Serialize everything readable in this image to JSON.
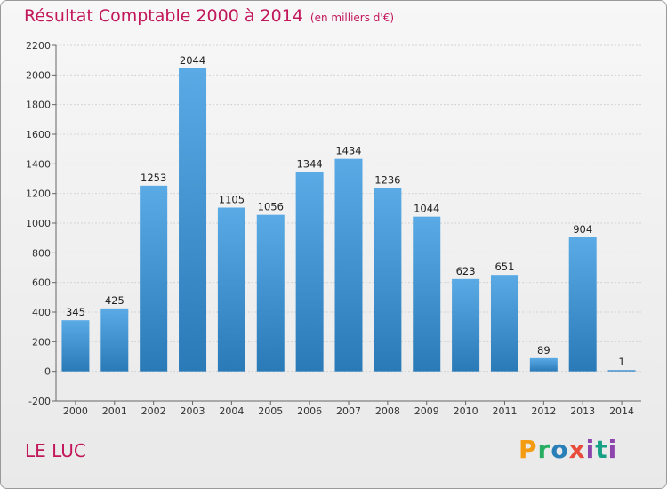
{
  "header": {
    "title": "Résultat Comptable 2000 à 2014",
    "unit": "(en milliers d'€)"
  },
  "commune": "LE LUC",
  "logo": {
    "text": "Proxiti"
  },
  "colors": {
    "accent": "#c2185b",
    "bar_top": "#5aaae6",
    "bar_bottom": "#2a7ab8"
  },
  "chart_data": {
    "type": "bar",
    "title": "Résultat Comptable 2000 à 2014",
    "subtitle": "(en milliers d'€)",
    "xlabel": "",
    "ylabel": "",
    "categories": [
      "2000",
      "2001",
      "2002",
      "2003",
      "2004",
      "2005",
      "2006",
      "2007",
      "2008",
      "2009",
      "2010",
      "2011",
      "2012",
      "2013",
      "2014"
    ],
    "values": [
      345,
      425,
      1253,
      2044,
      1105,
      1056,
      1344,
      1434,
      1236,
      1044,
      623,
      651,
      89,
      904,
      1
    ],
    "ylim": [
      -200,
      2200
    ],
    "yticks": [
      -200,
      0,
      200,
      400,
      600,
      800,
      1000,
      1200,
      1400,
      1600,
      1800,
      2000,
      2200
    ],
    "grid": true,
    "legend": "none"
  }
}
